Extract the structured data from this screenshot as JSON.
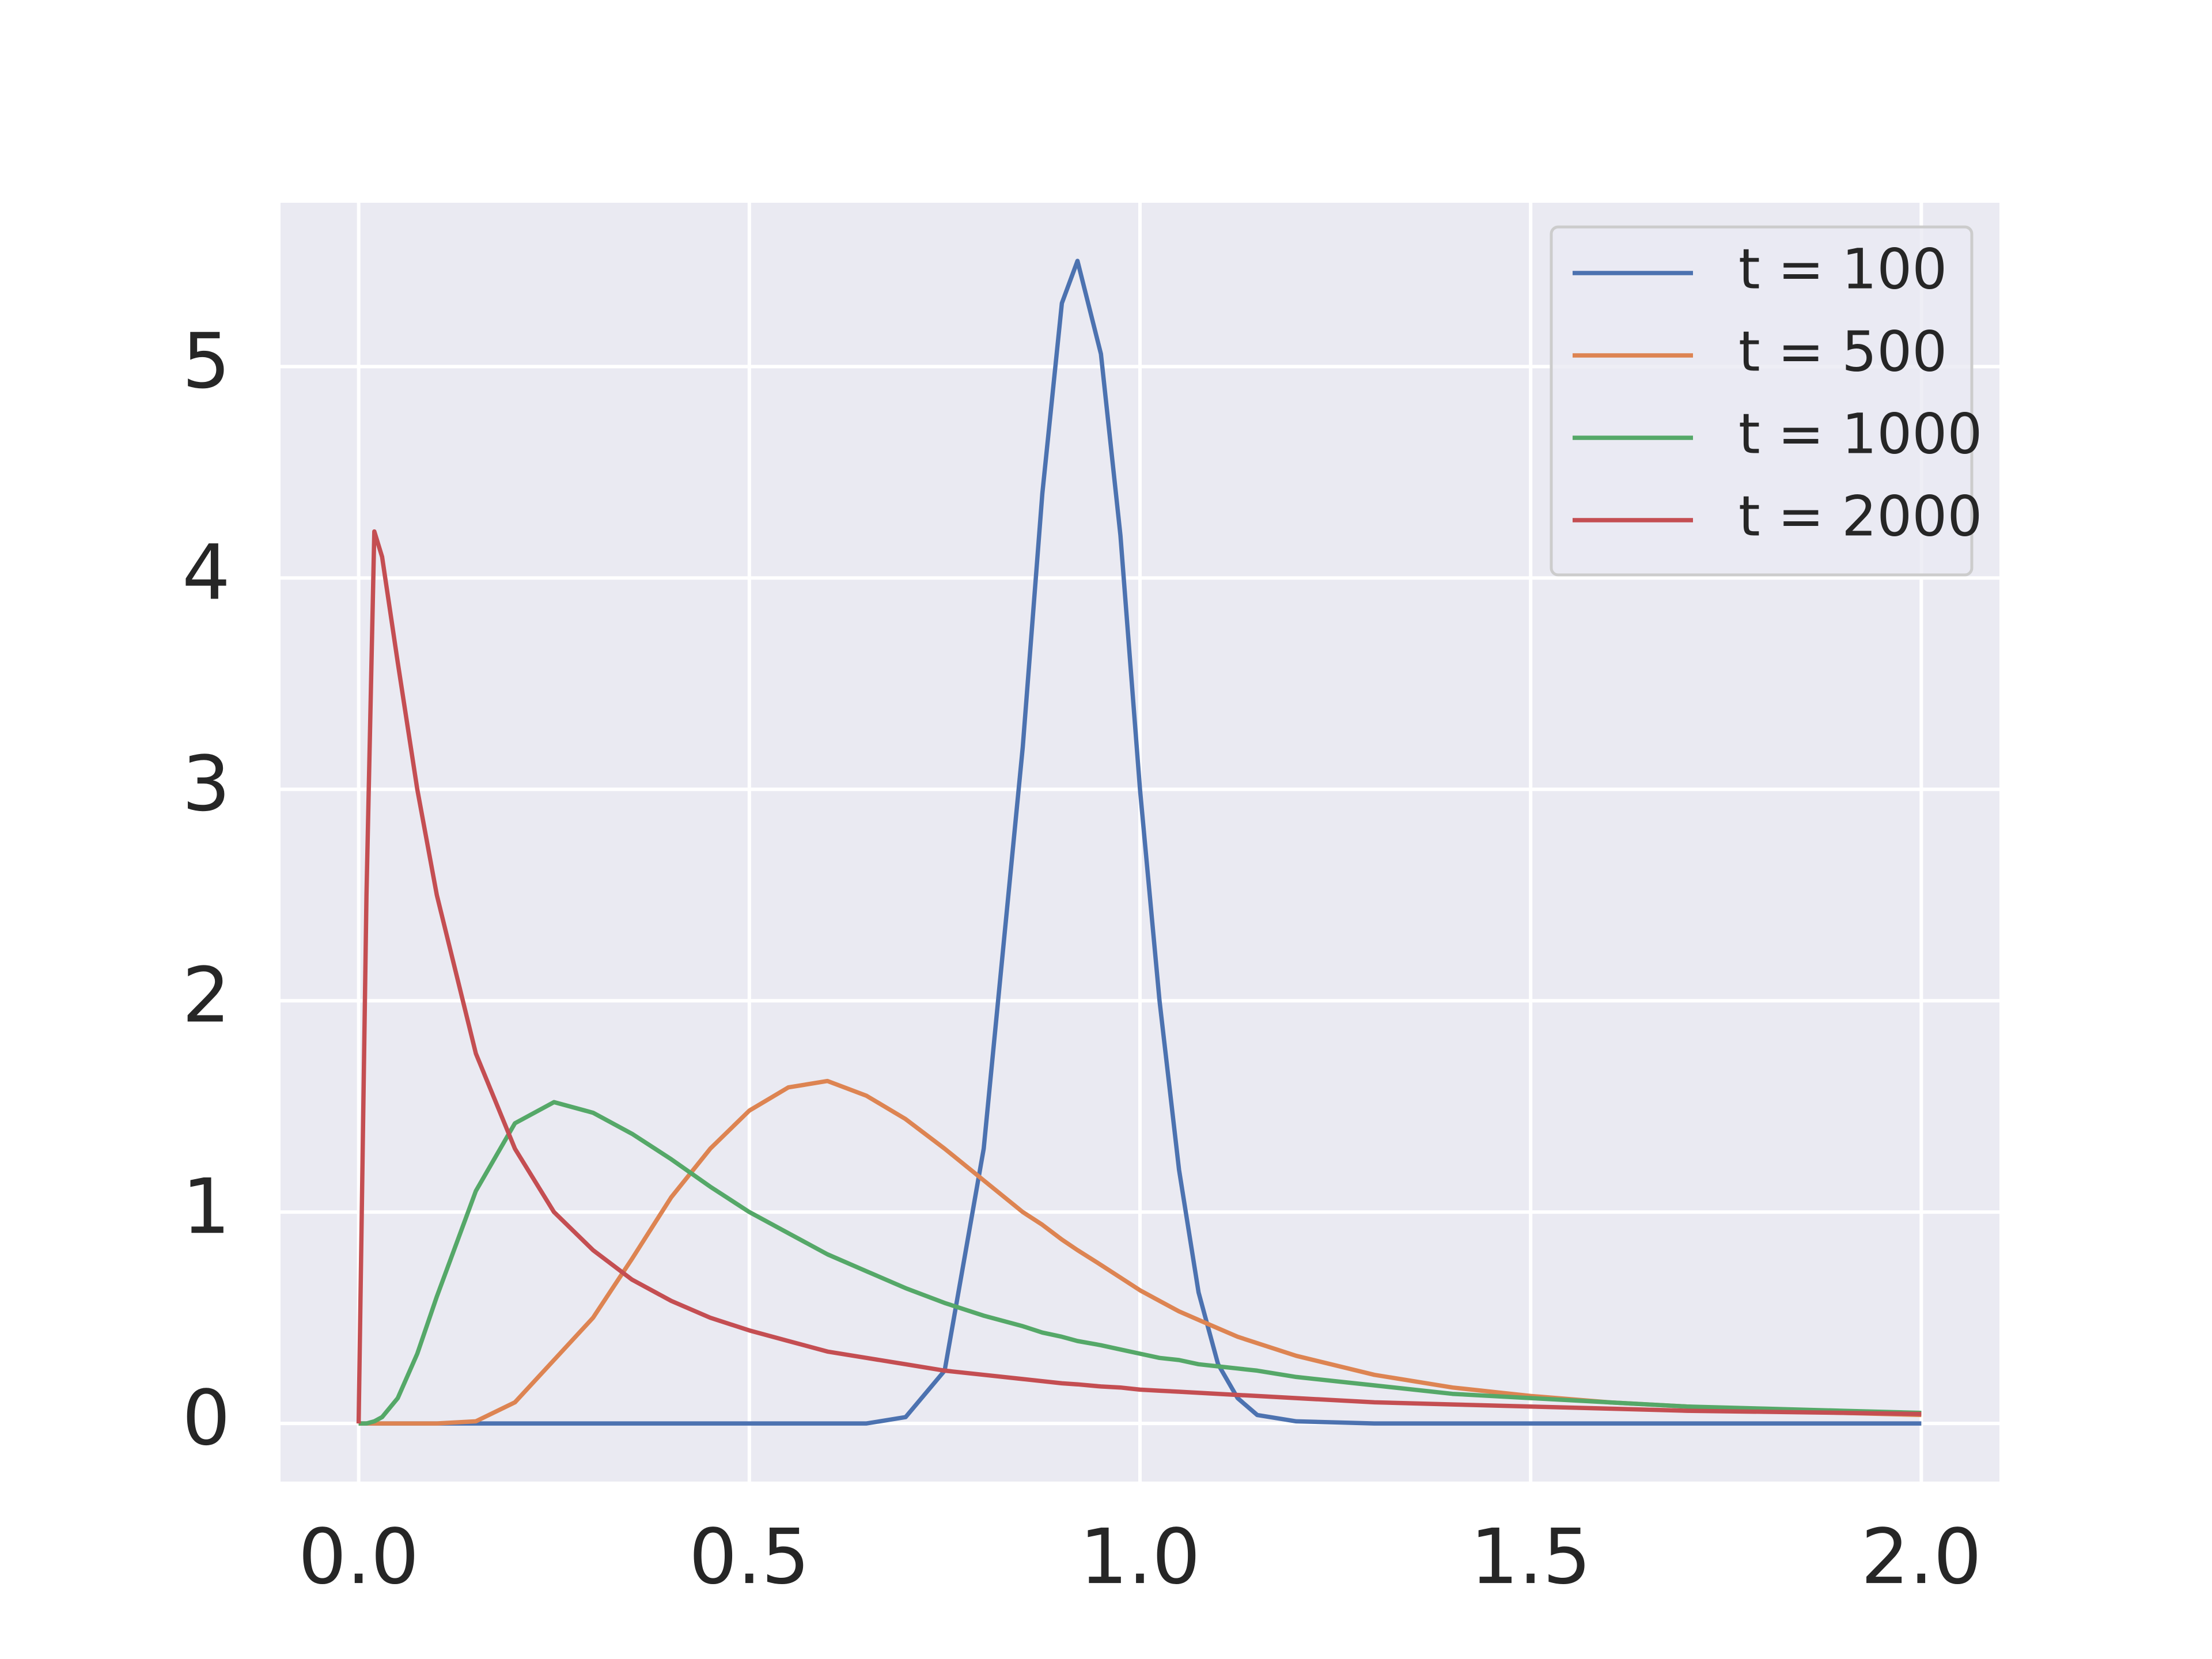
{
  "chart_data": {
    "type": "line",
    "x": [
      0,
      0.01,
      0.02,
      0.03,
      0.05,
      0.075,
      0.1,
      0.15,
      0.2,
      0.25,
      0.3,
      0.35,
      0.4,
      0.45,
      0.5,
      0.55,
      0.6,
      0.65,
      0.7,
      0.75,
      0.8,
      0.85,
      0.875,
      0.9,
      0.92,
      0.95,
      0.975,
      1.0,
      1.025,
      1.05,
      1.075,
      1.1,
      1.125,
      1.15,
      1.2,
      1.3,
      1.4,
      1.5,
      1.6,
      1.7,
      1.8,
      1.9,
      2.0
    ],
    "series": [
      {
        "name": "t = 100",
        "color": "#4c72b0",
        "values": [
          0,
          0,
          0,
          0,
          0,
          0,
          0,
          0,
          0,
          0,
          0,
          0,
          0,
          0,
          0,
          0,
          0,
          0,
          0.03,
          0.25,
          1.3,
          3.2,
          4.4,
          5.3,
          5.5,
          5.06,
          4.2,
          3.0,
          2.0,
          1.2,
          0.62,
          0.28,
          0.12,
          0.04,
          0.01,
          0,
          0,
          0,
          0,
          0,
          0,
          0,
          0
        ]
      },
      {
        "name": "t = 500",
        "color": "#dd8452",
        "values": [
          0,
          0,
          0,
          0,
          0,
          0,
          0,
          0.01,
          0.1,
          0.3,
          0.5,
          0.78,
          1.07,
          1.3,
          1.48,
          1.59,
          1.62,
          1.55,
          1.44,
          1.3,
          1.15,
          1.0,
          0.94,
          0.87,
          0.82,
          0.75,
          0.69,
          0.63,
          0.58,
          0.53,
          0.49,
          0.45,
          0.41,
          0.38,
          0.32,
          0.23,
          0.17,
          0.13,
          0.1,
          0.08,
          0.06,
          0.05,
          0.04
        ]
      },
      {
        "name": "t = 1000",
        "color": "#55a868",
        "values": [
          0,
          0,
          0.01,
          0.03,
          0.12,
          0.33,
          0.6,
          1.1,
          1.42,
          1.52,
          1.47,
          1.37,
          1.25,
          1.12,
          1.0,
          0.9,
          0.8,
          0.72,
          0.64,
          0.57,
          0.51,
          0.46,
          0.43,
          0.41,
          0.39,
          0.37,
          0.35,
          0.33,
          0.31,
          0.3,
          0.28,
          0.27,
          0.26,
          0.25,
          0.22,
          0.18,
          0.14,
          0.12,
          0.1,
          0.08,
          0.07,
          0.06,
          0.05
        ]
      },
      {
        "name": "t = 2000",
        "color": "#c44e52",
        "values": [
          0,
          2.5,
          4.22,
          4.1,
          3.6,
          3.0,
          2.5,
          1.75,
          1.3,
          1.0,
          0.82,
          0.68,
          0.58,
          0.5,
          0.44,
          0.39,
          0.34,
          0.31,
          0.28,
          0.25,
          0.23,
          0.21,
          0.2,
          0.19,
          0.185,
          0.175,
          0.17,
          0.16,
          0.155,
          0.15,
          0.145,
          0.14,
          0.135,
          0.13,
          0.12,
          0.1,
          0.09,
          0.08,
          0.07,
          0.06,
          0.055,
          0.05,
          0.045
        ]
      }
    ],
    "xlim": [
      -0.1,
      2.1
    ],
    "xticks": [
      {
        "value": 0,
        "label": "0.0"
      },
      0.5,
      {
        "value": 1,
        "label": "1.0"
      },
      1.5,
      {
        "value": 2,
        "label": "2.0"
      }
    ],
    "ylim": [
      -0.275,
      5.775
    ],
    "yticks": [
      0,
      1,
      2,
      3,
      4,
      5
    ],
    "grid": true,
    "legend": "upper right"
  }
}
